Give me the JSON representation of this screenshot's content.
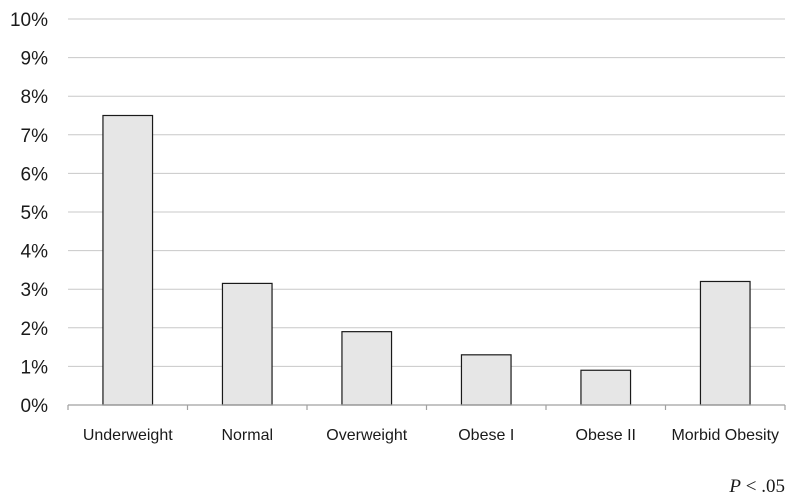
{
  "chart_data": {
    "type": "bar",
    "categories": [
      "Underweight",
      "Normal",
      "Overweight",
      "Obese I",
      "Obese II",
      "Morbid Obesity"
    ],
    "values": [
      7.5,
      3.15,
      1.9,
      1.3,
      0.9,
      3.2
    ],
    "ylim": [
      0,
      10
    ],
    "yticks": [
      "0%",
      "1%",
      "2%",
      "3%",
      "4%",
      "5%",
      "6%",
      "7%",
      "8%",
      "9%",
      "10%"
    ],
    "grid": true,
    "bar_color": "#e6e6e6",
    "bar_edge_color": "#1a1a1a",
    "annotation": {
      "italic": "P",
      "rest": " < .05"
    }
  }
}
